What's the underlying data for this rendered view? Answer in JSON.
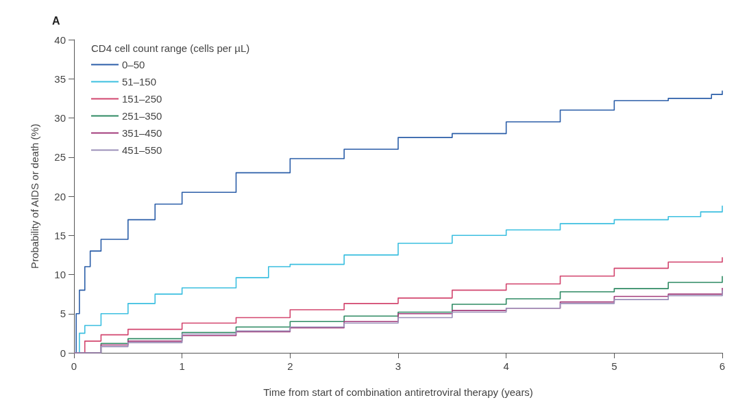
{
  "chart_data": {
    "type": "step",
    "xlabel": "Time from start of combination antiretroviral therapy (years)",
    "ylabel": "Probability of AIDS or death (%)",
    "legend_title": "CD4 cell count range (cells per µL)",
    "annotations": [
      "A"
    ],
    "legend": "top left",
    "grid": false,
    "marker": "none",
    "line_style": "solid",
    "xlim": [
      0,
      6
    ],
    "xticks": [
      0,
      1,
      2,
      3,
      4,
      5,
      6
    ],
    "ylim": [
      0,
      40
    ],
    "yticks": [
      0,
      5,
      10,
      15,
      20,
      25,
      30,
      35,
      40
    ],
    "series": [
      {
        "name": "0–50",
        "color": "#2a5da8",
        "x": [
          0,
          0.02,
          0.05,
          0.1,
          0.15,
          0.25,
          0.5,
          0.75,
          1,
          1.5,
          2,
          2.5,
          3,
          3.5,
          4,
          4.5,
          5,
          5.5,
          5.9,
          6
        ],
        "values": [
          0,
          5,
          8,
          11,
          13,
          14.5,
          17,
          19,
          20.5,
          23,
          24.8,
          26,
          27.5,
          28,
          29.5,
          31,
          32.2,
          32.5,
          33,
          33.5
        ]
      },
      {
        "name": "51–150",
        "color": "#3bbfe0",
        "x": [
          0,
          0.05,
          0.1,
          0.25,
          0.5,
          0.75,
          1,
          1.5,
          1.8,
          2,
          2.5,
          3,
          3.5,
          4,
          4.5,
          5,
          5.5,
          5.8,
          6
        ],
        "values": [
          0,
          2.5,
          3.5,
          5,
          6.3,
          7.5,
          8.3,
          9.6,
          11,
          11.3,
          12.5,
          14,
          15,
          15.7,
          16.5,
          17,
          17.4,
          18,
          18.8
        ]
      },
      {
        "name": "151–250",
        "color": "#d2456e",
        "x": [
          0,
          0.1,
          0.25,
          0.5,
          1,
          1.5,
          2,
          2.5,
          3,
          3.5,
          4,
          4.5,
          5,
          5.5,
          6
        ],
        "values": [
          0,
          1.5,
          2.3,
          3,
          3.8,
          4.5,
          5.5,
          6.3,
          7,
          8,
          8.8,
          9.8,
          10.8,
          11.6,
          12.2
        ]
      },
      {
        "name": "251–350",
        "color": "#2e8a63",
        "x": [
          0,
          0.25,
          0.5,
          1,
          1.5,
          2,
          2.5,
          3,
          3.5,
          4,
          4.5,
          5,
          5.5,
          6
        ],
        "values": [
          0,
          1.2,
          1.8,
          2.6,
          3.3,
          4,
          4.7,
          5.2,
          6.2,
          6.9,
          7.8,
          8.2,
          9,
          9.8
        ]
      },
      {
        "name": "351–450",
        "color": "#a23a7a",
        "x": [
          0,
          0.25,
          0.5,
          1,
          1.5,
          2,
          2.5,
          3,
          3.5,
          4,
          4.5,
          5,
          5.5,
          6
        ],
        "values": [
          0,
          1,
          1.5,
          2.2,
          2.7,
          3.2,
          4,
          5,
          5.4,
          5.7,
          6.5,
          7.2,
          7.5,
          8.3
        ]
      },
      {
        "name": "451–550",
        "color": "#9b8fb8",
        "x": [
          0,
          0.25,
          0.5,
          1,
          1.5,
          2,
          2.5,
          3,
          3.5,
          4,
          4.5,
          5,
          5.5,
          6
        ],
        "values": [
          0,
          0.8,
          1.3,
          2.4,
          2.8,
          3.3,
          3.8,
          4.5,
          5.2,
          5.7,
          6.3,
          6.8,
          7.3,
          8
        ]
      }
    ]
  }
}
